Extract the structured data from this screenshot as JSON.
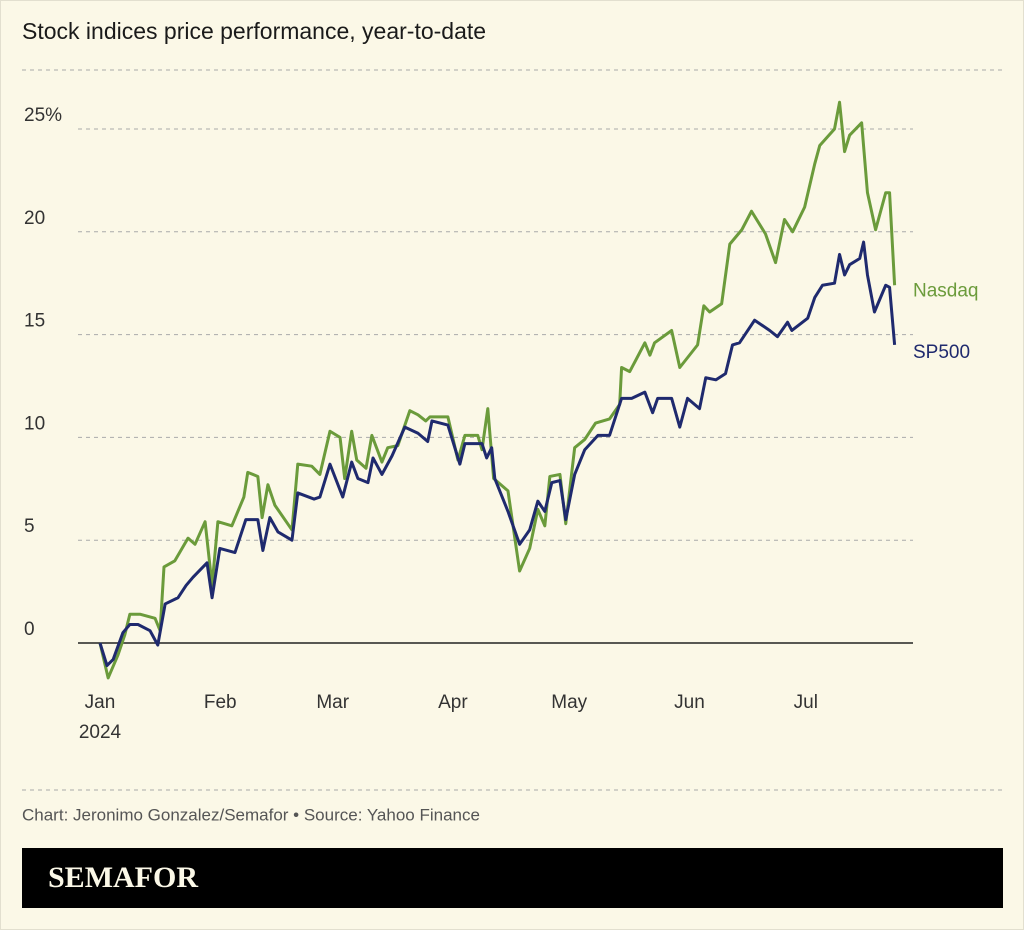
{
  "chart_data": {
    "type": "line",
    "title": "Stock indices price performance, year-to-date",
    "source": "Chart: Jeronimo Gonzalez/Semafor • Source: Yahoo Finance",
    "brand": "SEMAFOR",
    "xlim": [
      0,
      205
    ],
    "xticks": [
      {
        "value": 0,
        "label": "Jan 2024"
      },
      {
        "value": 31,
        "label": "Feb"
      },
      {
        "value": 60,
        "label": "Mar"
      },
      {
        "value": 91,
        "label": "Apr"
      },
      {
        "value": 121,
        "label": "May"
      },
      {
        "value": 152,
        "label": "Jun"
      },
      {
        "value": 182,
        "label": "Jul"
      }
    ],
    "ylim": [
      -2,
      27
    ],
    "yticks": [
      0,
      5,
      10,
      15,
      20,
      {
        "value": 25,
        "label": "25%"
      }
    ],
    "grid": true,
    "series": [
      {
        "name": "Nasdaq",
        "color": "#6b9b3b",
        "x": [
          0,
          2.1,
          4.6,
          6.4,
          7.7,
          10.3,
          14.2,
          15.5,
          16.5,
          19.3,
          22.7,
          24.5,
          27.1,
          28.9,
          30.4,
          34,
          37.1,
          38.1,
          40.7,
          41.8,
          43.3,
          45.1,
          49.5,
          51,
          54.6,
          56.7,
          59.3,
          61.9,
          63.1,
          64.9,
          66.2,
          68.6,
          70.1,
          72.7,
          74.2,
          76.8,
          79.9,
          82,
          84,
          85.1,
          89.7,
          92.3,
          94.1,
          97.4,
          98.5,
          100,
          101.5,
          105.2,
          108.2,
          110.8,
          112.9,
          114.7,
          116,
          118.6,
          120.1,
          122.4,
          125,
          127.8,
          131.4,
          134,
          134.5,
          136.6,
          140.5,
          141.8,
          143,
          147.4,
          149.5,
          154.1,
          155.7,
          157.2,
          160.3,
          162.4,
          165.5,
          168,
          171.6,
          174.2,
          176.5,
          178.6,
          181.7,
          184.3,
          185.6,
          189.4,
          190.7,
          192,
          193.3,
          196.4,
          197.9,
          200,
          202.6,
          203.6,
          204.9
        ],
        "values": [
          0,
          -1.7,
          -0.6,
          0.4,
          1.4,
          1.4,
          1.2,
          0.6,
          3.7,
          4.0,
          5.1,
          4.8,
          5.9,
          2.8,
          5.9,
          5.7,
          7.1,
          8.3,
          8.1,
          6.1,
          7.7,
          6.7,
          5.5,
          8.7,
          8.6,
          8.2,
          10.3,
          10.0,
          8.0,
          10.3,
          8.9,
          8.5,
          10.1,
          8.8,
          9.5,
          9.6,
          11.3,
          11.1,
          10.8,
          11.0,
          11.0,
          8.9,
          10.1,
          10.1,
          9.4,
          11.4,
          8.0,
          7.4,
          3.5,
          4.6,
          6.5,
          5.7,
          8.1,
          8.2,
          5.8,
          9.5,
          9.9,
          10.7,
          10.9,
          11.6,
          13.4,
          13.2,
          14.6,
          14.0,
          14.6,
          15.2,
          13.4,
          14.5,
          16.4,
          16.1,
          16.5,
          19.4,
          20.1,
          21.0,
          19.9,
          18.5,
          20.6,
          20.0,
          21.2,
          23.3,
          24.2,
          25.0,
          26.3,
          23.9,
          24.7,
          25.3,
          21.9,
          20.1,
          21.9,
          21.9,
          17.4
        ]
      },
      {
        "name": "SP500",
        "color": "#1f2a6e",
        "x": [
          0,
          1.8,
          3.4,
          5.9,
          7.7,
          9.8,
          12.9,
          14.9,
          16.8,
          20.1,
          22.2,
          24,
          27.6,
          28.9,
          30.9,
          34.8,
          37.6,
          40.7,
          42,
          43.8,
          45.9,
          49.5,
          51,
          55.2,
          56.7,
          59.3,
          62.6,
          64.9,
          66.5,
          69.1,
          70.4,
          72.7,
          75.3,
          78.6,
          82,
          84.5,
          85.6,
          89.7,
          92.8,
          94.1,
          98.5,
          99.7,
          101,
          101.8,
          105.2,
          108.2,
          110.8,
          112.9,
          114.7,
          116.5,
          118.6,
          120.1,
          122.4,
          125,
          128.4,
          131.4,
          134.5,
          137.1,
          140.5,
          142.5,
          143.8,
          147.4,
          149.5,
          151.5,
          154.6,
          156.2,
          158.8,
          161.3,
          163.1,
          164.9,
          168.8,
          172.7,
          174.7,
          177.3,
          178.4,
          182.5,
          184.3,
          186.3,
          189.4,
          190.7,
          192,
          193.3,
          195.9,
          196.9,
          197.9,
          199.7,
          202.6,
          203.6,
          204.9
        ],
        "values": [
          0,
          -1.1,
          -0.8,
          0.5,
          0.9,
          0.9,
          0.6,
          -0.1,
          1.9,
          2.2,
          2.8,
          3.2,
          3.9,
          2.2,
          4.6,
          4.4,
          6.0,
          6.0,
          4.5,
          6.1,
          5.4,
          5.0,
          7.3,
          7.0,
          7.1,
          8.7,
          7.1,
          8.8,
          8.0,
          7.8,
          9.0,
          8.2,
          9.1,
          10.5,
          10.2,
          9.8,
          10.8,
          10.6,
          8.7,
          9.7,
          9.7,
          9.0,
          9.5,
          8.0,
          6.4,
          4.8,
          5.5,
          6.9,
          6.4,
          7.8,
          7.9,
          6.0,
          8.2,
          9.4,
          10.1,
          10.1,
          11.9,
          11.9,
          12.2,
          11.2,
          11.9,
          11.9,
          10.5,
          11.9,
          11.4,
          12.9,
          12.8,
          13.1,
          14.5,
          14.6,
          15.7,
          15.2,
          14.9,
          15.6,
          15.2,
          15.8,
          16.8,
          17.4,
          17.5,
          18.9,
          17.9,
          18.4,
          18.7,
          19.5,
          17.9,
          16.1,
          17.4,
          17.3,
          14.5
        ]
      }
    ]
  }
}
